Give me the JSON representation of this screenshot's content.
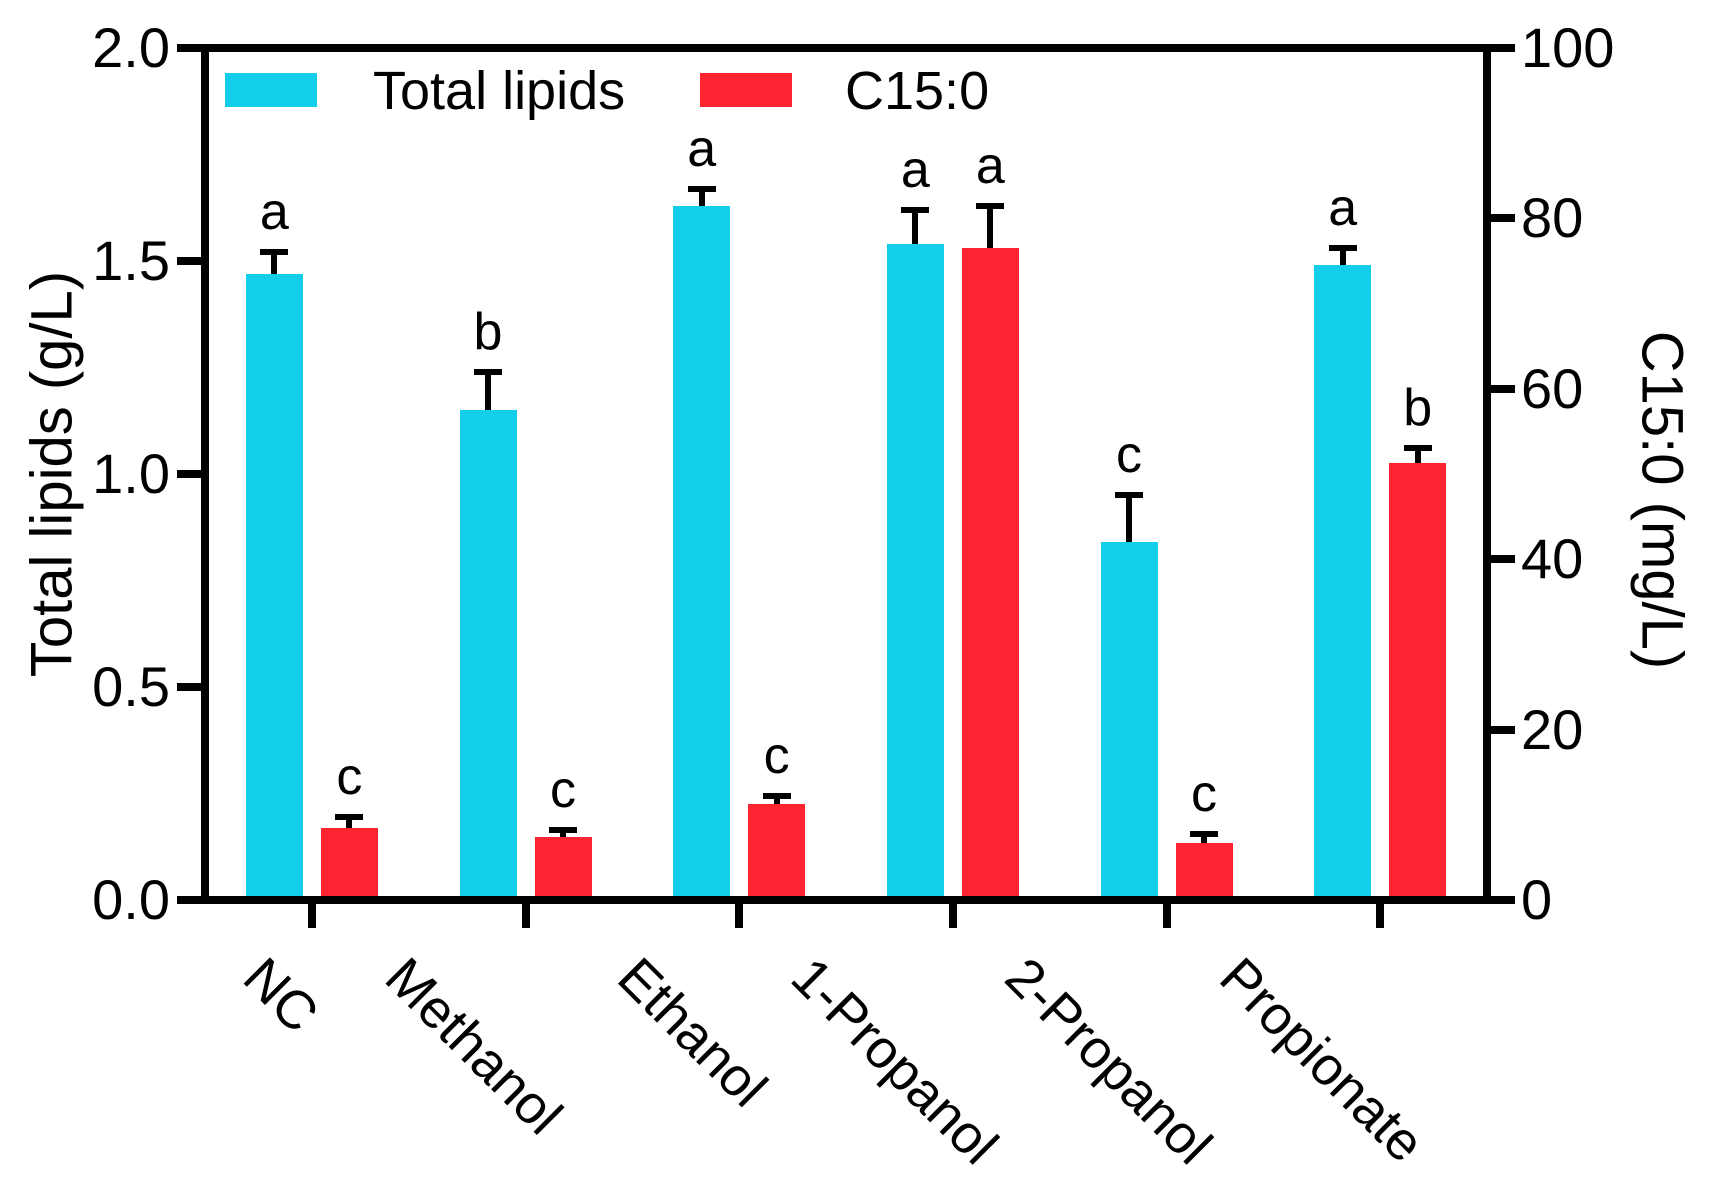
{
  "figure": {
    "background": "#ffffff"
  },
  "chart_data": {
    "type": "bar",
    "title": "",
    "categories": [
      "NC",
      "Methanol",
      "Ethanol",
      "1-Propanol",
      "2-Propanol",
      "Propionate"
    ],
    "series": [
      {
        "name": "Total lipids",
        "axis": "left",
        "color": "#13CEEA",
        "values": [
          1.47,
          1.15,
          1.63,
          1.54,
          0.84,
          1.49
        ],
        "errors": [
          0.05,
          0.09,
          0.04,
          0.08,
          0.11,
          0.04
        ],
        "letters": [
          "a",
          "b",
          "a",
          "a",
          "c",
          "a"
        ]
      },
      {
        "name": "C15:0",
        "axis": "right",
        "color": "#FB2430",
        "values": [
          8.5,
          7.4,
          11.3,
          76.5,
          6.7,
          51.3
        ],
        "errors": [
          1.2,
          0.8,
          0.9,
          5.0,
          1.0,
          1.7
        ],
        "letters": [
          "c",
          "c",
          "c",
          "a",
          "c",
          "b"
        ]
      }
    ],
    "left_axis": {
      "label": "Total lipids (g/L)",
      "min": 0,
      "max": 2,
      "tick_labels": [
        "0.0",
        "0.5",
        "1.0",
        "1.5",
        "2.0"
      ],
      "tick_values": [
        0,
        0.5,
        1,
        1.5,
        2
      ]
    },
    "right_axis": {
      "label": "C15:0 (mg/L)",
      "min": 0,
      "max": 100,
      "tick_labels": [
        "0",
        "20",
        "40",
        "60",
        "80",
        "100"
      ],
      "tick_values": [
        0,
        20,
        40,
        60,
        80,
        100
      ]
    },
    "legend": {
      "position": "top-left-inside",
      "entries": [
        "Total lipids",
        "C15:0"
      ]
    },
    "grid": false,
    "error_bars": "sd-upper-only",
    "annotation_style": "significance-letters"
  },
  "colors": {
    "axis": "#000000",
    "total_lipids": "#13CEEA",
    "c15": "#FB2430",
    "text": "#000000"
  }
}
